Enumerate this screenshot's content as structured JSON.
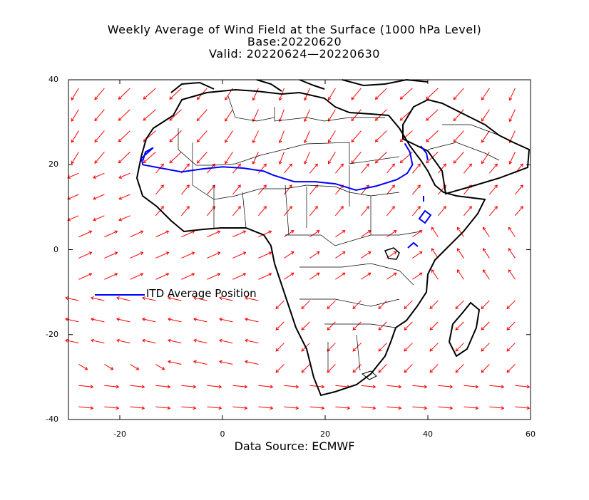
{
  "title": {
    "line1": "Weekly Average of Wind Field at the Surface (1000 hPa Level)",
    "line2": "Base:20220620",
    "line3": "Valid: 20220624—20220630"
  },
  "source": "Data Source: ECMWF",
  "legend": {
    "label": "ITD Average Position",
    "color": "#0000ff"
  },
  "colors": {
    "wind": "#ff0000",
    "itd": "#0000ff",
    "coast": "#000000"
  },
  "axes": {
    "lon_range": [
      -30,
      60
    ],
    "lat_range": [
      -40,
      40
    ],
    "x_ticks": [
      "-20",
      "0",
      "20",
      "40",
      "60"
    ],
    "y_ticks": [
      "40",
      "20",
      "0",
      "-20",
      "-40"
    ]
  },
  "map_data": {
    "type": "vector-field",
    "itd_line": [
      [
        -15.5,
        21
      ],
      [
        -15,
        23
      ],
      [
        -13.5,
        24
      ],
      [
        -15.8,
        21.5
      ],
      [
        -15.5,
        20
      ],
      [
        -12,
        19.2
      ],
      [
        -8,
        18.3
      ],
      [
        -4,
        19
      ],
      [
        0,
        19.5
      ],
      [
        4,
        19.2
      ],
      [
        8,
        18.5
      ],
      [
        10,
        17.5
      ],
      [
        14,
        16
      ],
      [
        18,
        16
      ],
      [
        22,
        15.5
      ],
      [
        26,
        14
      ],
      [
        30,
        15
      ],
      [
        34,
        16.5
      ],
      [
        36,
        18
      ],
      [
        37,
        20
      ],
      [
        36.5,
        23
      ],
      [
        35.5,
        25
      ]
    ]
  }
}
